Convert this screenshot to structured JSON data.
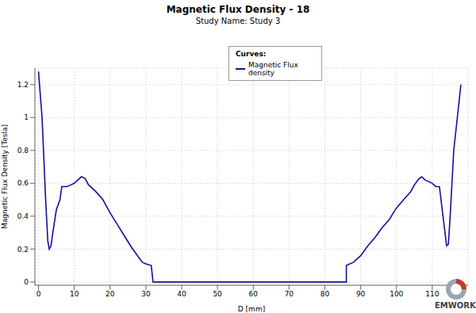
{
  "chart_data": {
    "type": "line",
    "title": "Magnetic Flux Density - 18",
    "subtitle": "Study Name: Study 3",
    "x_label": "D [mm]",
    "y_label": "Magnetic Flux Density [Tesla]",
    "legend_title": "Curves:",
    "annotation": "EMWORKS",
    "legend": "top",
    "grid": true,
    "xlim": [
      -1,
      120
    ],
    "xticks": [
      0,
      10,
      20,
      30,
      40,
      50,
      60,
      70,
      80,
      90,
      100,
      110
    ],
    "ylim": [
      -0.02,
      1.3
    ],
    "yticks": [
      0,
      0.2,
      0.4,
      0.6,
      0.8,
      1,
      1.2
    ],
    "series": [
      {
        "name": "Magnetic Flux density",
        "color": "#1010a0",
        "x": [
          0,
          1,
          2,
          2.6,
          3,
          3.5,
          4,
          5,
          6,
          6.5,
          8,
          9,
          10,
          11,
          12,
          13,
          14,
          16,
          18,
          20,
          22,
          24,
          26,
          28,
          29,
          30,
          31.5,
          32,
          86,
          86,
          88,
          90,
          92,
          94,
          96,
          98,
          100,
          102,
          104,
          105,
          106,
          107,
          108,
          110,
          111,
          112,
          113,
          114,
          114.5,
          115,
          116,
          117,
          118
        ],
        "values": [
          1.28,
          1.0,
          0.5,
          0.25,
          0.2,
          0.22,
          0.3,
          0.44,
          0.5,
          0.58,
          0.58,
          0.59,
          0.6,
          0.62,
          0.64,
          0.63,
          0.59,
          0.55,
          0.5,
          0.42,
          0.35,
          0.28,
          0.21,
          0.15,
          0.12,
          0.11,
          0.1,
          0,
          0,
          0.1,
          0.12,
          0.16,
          0.22,
          0.27,
          0.33,
          0.38,
          0.45,
          0.5,
          0.55,
          0.59,
          0.62,
          0.64,
          0.62,
          0.6,
          0.58,
          0.58,
          0.4,
          0.22,
          0.23,
          0.4,
          0.8,
          1.0,
          1.2
        ]
      }
    ]
  }
}
